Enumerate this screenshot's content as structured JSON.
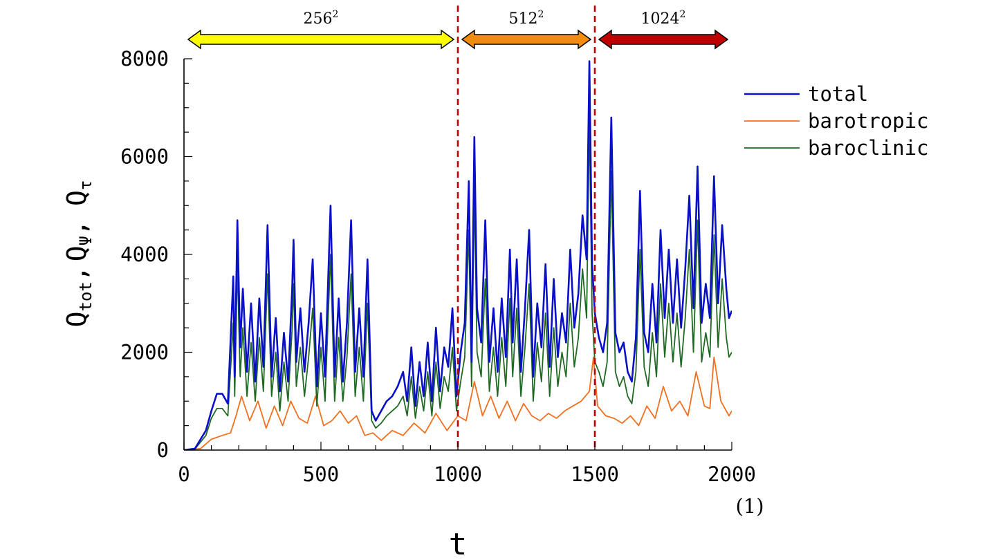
{
  "chart_data": {
    "type": "line",
    "title": "",
    "xlabel": "t",
    "ylabel": "Q_tot, Q_Ψ, Q_τ",
    "ylabel_parts": {
      "q1": "Q",
      "s1": "tot",
      "c1": ",",
      "q2": "Q",
      "s2": "Ψ",
      "c2": ",",
      "q3": "Q",
      "s3": "τ"
    },
    "xlim": [
      0,
      2000
    ],
    "ylim": [
      0,
      8000
    ],
    "x_ticks": [
      "0",
      "500",
      "1000",
      "1500",
      "2000"
    ],
    "y_ticks": [
      "0",
      "2000",
      "4000",
      "6000",
      "8000"
    ],
    "x_tick_values": [
      0,
      500,
      1000,
      1500,
      2000
    ],
    "y_tick_values": [
      0,
      2000,
      4000,
      6000,
      8000
    ],
    "grid": false,
    "legend_position": "right",
    "resolutions": [
      {
        "base": "256",
        "exp": "2",
        "x_start": 0,
        "x_end": 1000,
        "color": "#ffff00"
      },
      {
        "base": "512",
        "exp": "2",
        "x_start": 1000,
        "x_end": 1500,
        "color": "#f28c0f"
      },
      {
        "base": "1024",
        "exp": "2",
        "x_start": 1500,
        "x_end": 2000,
        "color": "#c00000"
      }
    ],
    "vlines": [
      1000,
      1500
    ],
    "vline_color": "#c00000",
    "note": "(1)",
    "series": [
      {
        "name": "total",
        "color": "#0a10c8",
        "x": [
          0,
          40,
          80,
          100,
          120,
          140,
          160,
          180,
          185,
          195,
          205,
          215,
          230,
          245,
          260,
          275,
          290,
          305,
          320,
          335,
          350,
          365,
          380,
          395,
          400,
          410,
          425,
          440,
          455,
          470,
          485,
          500,
          515,
          535,
          550,
          565,
          580,
          595,
          610,
          625,
          640,
          655,
          670,
          685,
          700,
          720,
          740,
          760,
          780,
          800,
          815,
          830,
          845,
          860,
          875,
          890,
          905,
          920,
          935,
          950,
          965,
          980,
          995,
          1010,
          1025,
          1040,
          1050,
          1060,
          1070,
          1085,
          1100,
          1115,
          1130,
          1145,
          1160,
          1175,
          1190,
          1200,
          1215,
          1230,
          1245,
          1260,
          1275,
          1290,
          1305,
          1320,
          1335,
          1350,
          1365,
          1380,
          1395,
          1410,
          1425,
          1440,
          1455,
          1470,
          1480,
          1490,
          1500,
          1515,
          1530,
          1545,
          1560,
          1575,
          1590,
          1605,
          1620,
          1635,
          1650,
          1665,
          1680,
          1695,
          1710,
          1725,
          1740,
          1755,
          1770,
          1785,
          1800,
          1815,
          1830,
          1845,
          1860,
          1875,
          1890,
          1905,
          1920,
          1935,
          1950,
          1965,
          1980,
          1990,
          2000
        ],
        "values": [
          0,
          30,
          400,
          800,
          1150,
          1150,
          950,
          3550,
          1500,
          4700,
          2100,
          3300,
          1600,
          3000,
          1400,
          3100,
          1700,
          4600,
          1500,
          2700,
          1200,
          2400,
          1400,
          3300,
          4300,
          1800,
          2900,
          1600,
          2600,
          3900,
          1300,
          2800,
          1500,
          5000,
          1500,
          3100,
          1400,
          2600,
          4700,
          1600,
          2900,
          1500,
          3900,
          800,
          600,
          800,
          1000,
          1100,
          1300,
          1600,
          1000,
          2100,
          900,
          1800,
          1100,
          2200,
          1000,
          2500,
          1200,
          2100,
          1700,
          2900,
          1100,
          2000,
          2600,
          5500,
          1800,
          6400,
          2900,
          2200,
          4700,
          1800,
          2900,
          1600,
          3100,
          1900,
          4100,
          2200,
          3900,
          1600,
          2900,
          4500,
          1500,
          3000,
          2100,
          3800,
          1700,
          3500,
          1900,
          2800,
          2200,
          4100,
          2500,
          3200,
          4800,
          3900,
          7950,
          3800,
          2800,
          2300,
          2000,
          2600,
          6800,
          2400,
          2000,
          2200,
          1600,
          1400,
          2300,
          5300,
          2400,
          2000,
          3400,
          2200,
          4500,
          2700,
          4100,
          2600,
          3900,
          2500,
          3700,
          5200,
          2900,
          5800,
          2600,
          3400,
          2700,
          5600,
          3000,
          4600,
          3300,
          2700,
          2850
        ]
      },
      {
        "name": "barotropic",
        "color": "#f07020",
        "x": [
          0,
          60,
          100,
          140,
          170,
          190,
          210,
          240,
          270,
          300,
          330,
          360,
          390,
          420,
          450,
          480,
          510,
          540,
          570,
          600,
          630,
          660,
          690,
          720,
          760,
          800,
          840,
          880,
          920,
          960,
          1000,
          1030,
          1060,
          1090,
          1120,
          1150,
          1180,
          1210,
          1240,
          1270,
          1300,
          1330,
          1360,
          1390,
          1420,
          1450,
          1480,
          1495,
          1510,
          1540,
          1570,
          1600,
          1630,
          1660,
          1690,
          1720,
          1750,
          1780,
          1810,
          1840,
          1870,
          1900,
          1920,
          1935,
          1960,
          1990,
          2000
        ],
        "values": [
          0,
          30,
          220,
          300,
          350,
          700,
          1100,
          600,
          1000,
          450,
          900,
          500,
          1000,
          650,
          550,
          1100,
          500,
          600,
          800,
          550,
          700,
          300,
          350,
          200,
          400,
          300,
          550,
          350,
          750,
          400,
          700,
          600,
          1400,
          700,
          1100,
          650,
          1000,
          600,
          950,
          700,
          600,
          750,
          650,
          800,
          900,
          1000,
          1200,
          1900,
          900,
          700,
          650,
          550,
          700,
          500,
          900,
          650,
          1300,
          800,
          1000,
          700,
          1600,
          900,
          850,
          1900,
          1000,
          700,
          800
        ]
      },
      {
        "name": "baroclinic",
        "color": "#1f6a22",
        "x": [
          0,
          40,
          80,
          100,
          120,
          140,
          160,
          180,
          185,
          195,
          205,
          215,
          230,
          245,
          260,
          275,
          290,
          305,
          320,
          335,
          350,
          365,
          380,
          395,
          400,
          410,
          425,
          440,
          455,
          470,
          485,
          500,
          515,
          535,
          550,
          565,
          580,
          595,
          610,
          625,
          640,
          655,
          670,
          685,
          700,
          720,
          740,
          760,
          780,
          800,
          815,
          830,
          845,
          860,
          875,
          890,
          905,
          920,
          935,
          950,
          965,
          980,
          995,
          1010,
          1025,
          1040,
          1050,
          1060,
          1070,
          1085,
          1100,
          1115,
          1130,
          1145,
          1160,
          1175,
          1190,
          1200,
          1215,
          1230,
          1245,
          1260,
          1275,
          1290,
          1305,
          1320,
          1335,
          1350,
          1365,
          1380,
          1395,
          1410,
          1425,
          1440,
          1455,
          1470,
          1480,
          1490,
          1500,
          1515,
          1530,
          1545,
          1560,
          1575,
          1590,
          1605,
          1620,
          1635,
          1650,
          1665,
          1680,
          1695,
          1710,
          1725,
          1740,
          1755,
          1770,
          1785,
          1800,
          1815,
          1830,
          1845,
          1860,
          1875,
          1890,
          1905,
          1920,
          1935,
          1950,
          1965,
          1980,
          1990,
          2000
        ],
        "values": [
          0,
          20,
          300,
          650,
          850,
          850,
          700,
          2600,
          1100,
          3800,
          1500,
          2500,
          1100,
          2200,
          1000,
          2300,
          1200,
          3600,
          1100,
          2000,
          800,
          1800,
          1000,
          2500,
          3400,
          1300,
          2100,
          1100,
          1900,
          2900,
          900,
          2100,
          1000,
          4000,
          1000,
          2300,
          1000,
          1900,
          3600,
          1100,
          2100,
          1000,
          3000,
          600,
          450,
          550,
          700,
          800,
          900,
          1100,
          700,
          1500,
          650,
          1300,
          800,
          1600,
          700,
          1800,
          850,
          1500,
          1200,
          2100,
          800,
          1400,
          1900,
          4500,
          1300,
          5300,
          2000,
          1500,
          3500,
          1200,
          2100,
          1100,
          2300,
          1300,
          3100,
          1500,
          2900,
          1100,
          2100,
          3400,
          1000,
          2200,
          1400,
          2800,
          1100,
          2500,
          1300,
          2000,
          1500,
          3000,
          1700,
          2300,
          3700,
          2700,
          6800,
          2800,
          1800,
          1600,
          1300,
          1800,
          5700,
          1600,
          1300,
          1500,
          1100,
          950,
          1600,
          4100,
          1700,
          1300,
          2400,
          1500,
          3400,
          1900,
          3000,
          1800,
          2800,
          1700,
          2700,
          4100,
          2000,
          4700,
          1800,
          2400,
          1900,
          4400,
          2100,
          3500,
          2300,
          1900,
          2000
        ]
      }
    ]
  }
}
